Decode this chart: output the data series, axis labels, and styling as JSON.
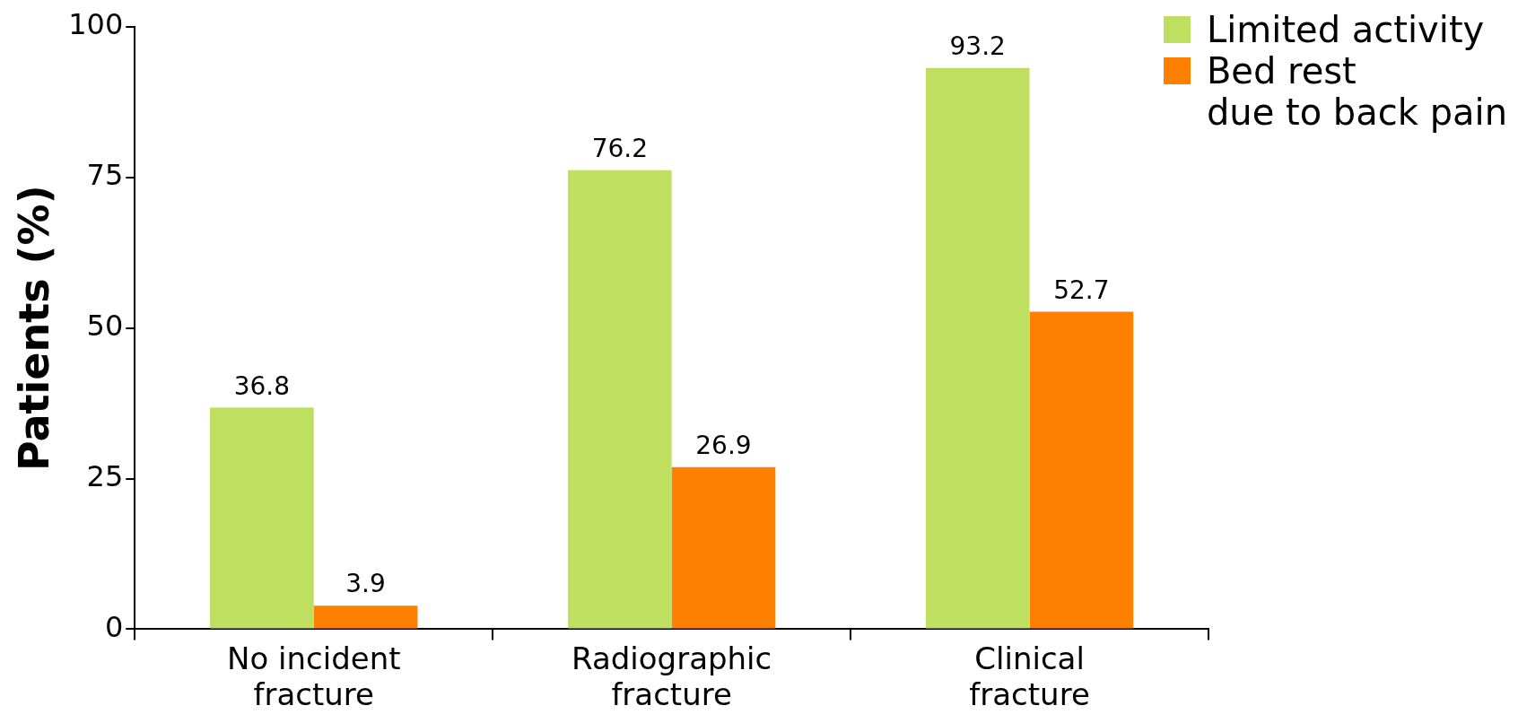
{
  "chart_data": {
    "type": "bar",
    "ylabel": "Patients (%)",
    "categories": [
      "No incident\nfracture",
      "Radiographic\nfracture",
      "Clinical\nfracture"
    ],
    "series": [
      {
        "name": "Limited activity",
        "color": "#bfdf60",
        "values": [
          36.8,
          76.2,
          93.2
        ]
      },
      {
        "name": "Bed rest\ndue to back pain",
        "color": "#ff8000",
        "values": [
          3.9,
          26.9,
          52.7
        ]
      }
    ],
    "ylim": [
      0,
      100
    ],
    "yticks": [
      0,
      25,
      50,
      75,
      100
    ],
    "grid": false,
    "legend": "top right",
    "data_labels": true
  }
}
